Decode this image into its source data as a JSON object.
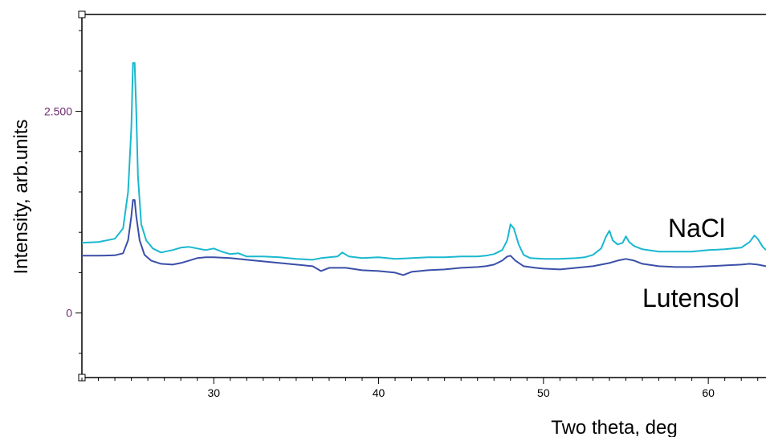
{
  "chart_data": {
    "type": "line",
    "title": "",
    "xlabel": "Two theta, deg",
    "ylabel": "Intensity, arb.units",
    "xlim": [
      22,
      63.5
    ],
    "ylim": [
      -800,
      3700
    ],
    "xticks": [
      30,
      40,
      50,
      60
    ],
    "yticks": [
      0,
      2500
    ],
    "ytick_labels": [
      "0",
      "2.500"
    ],
    "grid": false,
    "series": [
      {
        "name": "NaCl",
        "color": "#1ab8cf",
        "x": [
          22,
          23,
          24,
          24.5,
          24.8,
          25.0,
          25.1,
          25.2,
          25.3,
          25.4,
          25.6,
          25.9,
          26.3,
          26.8,
          27.5,
          28,
          28.5,
          29,
          29.5,
          30,
          30.5,
          31,
          31.5,
          32,
          33,
          34,
          35,
          36,
          36.5,
          37,
          37.5,
          37.8,
          38.2,
          39,
          40,
          41,
          42,
          43,
          44,
          45,
          46,
          46.5,
          47,
          47.5,
          47.8,
          48.0,
          48.2,
          48.5,
          48.8,
          49.2,
          50,
          51,
          52,
          52.5,
          53,
          53.5,
          53.8,
          54.0,
          54.2,
          54.5,
          54.8,
          55.0,
          55.2,
          55.5,
          56,
          57,
          58,
          59,
          60,
          61,
          62,
          62.5,
          62.8,
          63.0,
          63.3,
          63.5
        ],
        "y": [
          870,
          880,
          920,
          1050,
          1500,
          2300,
          3100,
          3100,
          2500,
          1700,
          1100,
          900,
          800,
          750,
          780,
          810,
          820,
          800,
          780,
          800,
          760,
          730,
          740,
          700,
          700,
          690,
          670,
          660,
          680,
          690,
          700,
          750,
          700,
          680,
          690,
          670,
          680,
          690,
          690,
          700,
          700,
          710,
          730,
          780,
          900,
          1100,
          1050,
          850,
          720,
          680,
          670,
          670,
          680,
          690,
          720,
          800,
          950,
          1020,
          900,
          850,
          870,
          950,
          880,
          830,
          790,
          760,
          760,
          760,
          780,
          790,
          810,
          880,
          960,
          920,
          820,
          780
        ]
      },
      {
        "name": "Lutensol",
        "color": "#3a4fa8",
        "x": [
          22,
          23,
          24,
          24.5,
          24.8,
          25.0,
          25.1,
          25.2,
          25.3,
          25.5,
          25.8,
          26.2,
          26.8,
          27.5,
          28,
          28.5,
          29,
          29.5,
          30,
          31,
          32,
          33,
          34,
          35,
          36,
          36.5,
          37,
          38,
          39,
          40,
          41,
          41.5,
          42,
          43,
          44,
          45,
          46,
          46.5,
          47,
          47.5,
          47.8,
          48.0,
          48.3,
          48.8,
          49.5,
          50,
          51,
          52,
          53,
          54,
          54.5,
          55,
          55.5,
          56,
          57,
          58,
          59,
          60,
          61,
          62,
          62.5,
          63,
          63.5
        ],
        "y": [
          710,
          710,
          715,
          740,
          900,
          1200,
          1400,
          1400,
          1200,
          900,
          720,
          650,
          610,
          600,
          620,
          650,
          680,
          690,
          690,
          680,
          660,
          640,
          620,
          600,
          580,
          520,
          560,
          560,
          530,
          520,
          500,
          470,
          510,
          530,
          540,
          560,
          570,
          580,
          600,
          650,
          700,
          710,
          650,
          580,
          560,
          550,
          540,
          560,
          580,
          620,
          650,
          670,
          650,
          610,
          580,
          570,
          570,
          580,
          590,
          600,
          610,
          600,
          580
        ]
      }
    ]
  },
  "labels": {
    "nacl": "NaCl",
    "lutensol": "Lutensol"
  }
}
